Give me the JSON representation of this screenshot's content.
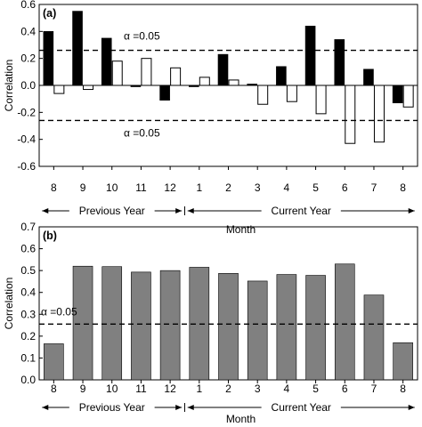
{
  "chart_data": [
    {
      "panel_label": "(a)",
      "type": "bar",
      "categories": [
        "8",
        "9",
        "10",
        "11",
        "12",
        "1",
        "2",
        "3",
        "4",
        "5",
        "6",
        "7",
        "8"
      ],
      "series": [
        {
          "values": [
            0.4,
            0.55,
            0.35,
            -0.01,
            -0.11,
            -0.01,
            0.23,
            0.01,
            0.14,
            0.44,
            0.34,
            0.12,
            -0.13
          ],
          "color": "#000000",
          "fill": "solid"
        },
        {
          "values": [
            -0.06,
            -0.03,
            0.18,
            0.2,
            0.13,
            0.06,
            0.04,
            -0.14,
            -0.12,
            -0.21,
            -0.43,
            -0.42,
            -0.16
          ],
          "color": "#ffffff",
          "fill": "hollow"
        }
      ],
      "ylabel": "Correlation",
      "xlabel": "Month",
      "ylim": [
        -0.6,
        0.6
      ],
      "yticks": [
        "-0.6",
        "-0.4",
        "-0.2",
        "0.0",
        "0.2",
        "0.4",
        "0.6"
      ],
      "ytick_values": [
        -0.6,
        -0.4,
        -0.2,
        0.0,
        0.2,
        0.4,
        0.6
      ],
      "thresholds": [
        {
          "value": 0.26,
          "label": "α =0.05"
        },
        {
          "value": -0.26,
          "label": "α =0.05"
        }
      ],
      "zero_line": true,
      "period_labels": [
        {
          "label": "Previous Year",
          "from_index": 0,
          "to_index": 4
        },
        {
          "label": "Current Year",
          "from_index": 5,
          "to_index": 12
        }
      ]
    },
    {
      "panel_label": "(b)",
      "type": "bar",
      "categories": [
        "8",
        "9",
        "10",
        "11",
        "12",
        "1",
        "2",
        "3",
        "4",
        "5",
        "6",
        "7",
        "8"
      ],
      "series": [
        {
          "values": [
            0.165,
            0.52,
            0.518,
            0.493,
            0.5,
            0.515,
            0.487,
            0.452,
            0.482,
            0.478,
            0.53,
            0.388,
            0.17
          ],
          "color": "#808080",
          "fill": "solid"
        }
      ],
      "ylabel": "Correlation",
      "xlabel": "Month",
      "ylim": [
        0.0,
        0.7
      ],
      "yticks": [
        "0.0",
        "0.1",
        "0.2",
        "0.3",
        "0.4",
        "0.5",
        "0.6",
        "0.7"
      ],
      "ytick_values": [
        0.0,
        0.1,
        0.2,
        0.3,
        0.4,
        0.5,
        0.6,
        0.7
      ],
      "thresholds": [
        {
          "value": 0.255,
          "label": "α =0.05"
        }
      ],
      "zero_line": false,
      "period_labels": [
        {
          "label": "Previous Year",
          "from_index": 0,
          "to_index": 4
        },
        {
          "label": "Current Year",
          "from_index": 5,
          "to_index": 12
        }
      ]
    }
  ]
}
